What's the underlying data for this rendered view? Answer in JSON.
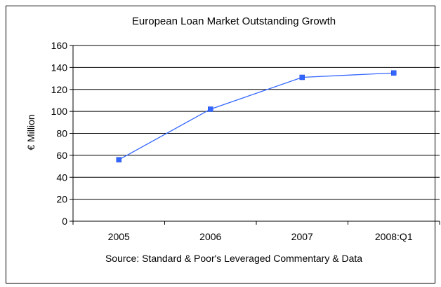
{
  "chart_data": {
    "type": "line",
    "title": "European Loan Market Outstanding Growth",
    "ylabel": "€ Million",
    "xlabel": "",
    "categories": [
      "2005",
      "2006",
      "2007",
      "2008:Q1"
    ],
    "series": [
      {
        "values": [
          56,
          102,
          131,
          135
        ]
      }
    ],
    "ylim": [
      0,
      160
    ],
    "yticks": [
      0,
      20,
      40,
      60,
      80,
      100,
      120,
      140,
      160
    ],
    "grid": true,
    "legend": "none",
    "source": "Source: Standard & Poor's Leveraged Commentary & Data",
    "colors": {
      "line": "#3366ff",
      "marker": "#3366ff"
    }
  }
}
